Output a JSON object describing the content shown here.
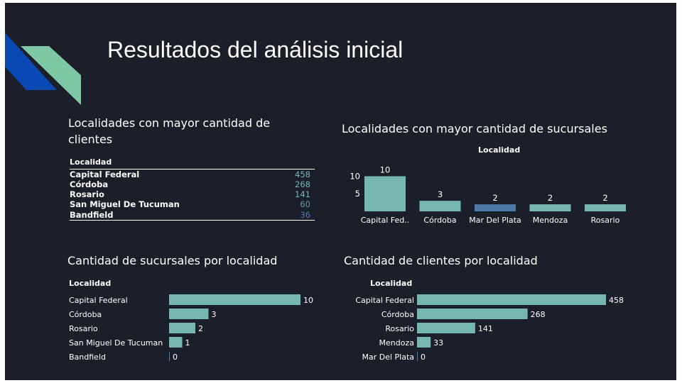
{
  "slide": {
    "title": "Resultados del análisis inicial",
    "colors": {
      "background": "#1b1f2a",
      "bar": "#76b7b2",
      "bar_highlight": "#4e79a7",
      "logo_blue": "#0a48b4",
      "logo_green": "#7fc8a5"
    }
  },
  "chart_data": [
    {
      "type": "table",
      "title": "Localidades con mayor cantidad de clientes",
      "column_header": "Localidad",
      "rows": [
        {
          "name": "Capital Federal",
          "value": "458"
        },
        {
          "name": "Córdoba",
          "value": "268"
        },
        {
          "name": "Rosario",
          "value": "141"
        },
        {
          "name": "San Miguel De Tucuman",
          "value": "60"
        },
        {
          "name": "Bandfield",
          "value": "36"
        }
      ],
      "value_colors": [
        "#76b7b2",
        "#76b7b2",
        "#76b7b2",
        "#6694a0",
        "#4e79a7"
      ]
    },
    {
      "type": "bar",
      "orientation": "vertical",
      "title": "Localidades con mayor cantidad de sucursales",
      "xlabel": "Localidad",
      "categories": [
        "Capital Fed..",
        "Córdoba",
        "Mar Del Plata",
        "Mendoza",
        "Rosario"
      ],
      "values": [
        10,
        3,
        2,
        2,
        2
      ],
      "bar_colors": [
        "#76b7b2",
        "#76b7b2",
        "#4e79a7",
        "#76b7b2",
        "#76b7b2"
      ],
      "yticks": [
        5,
        10
      ],
      "ylim": [
        0,
        10.5
      ]
    },
    {
      "type": "bar",
      "orientation": "horizontal",
      "title": "Cantidad de sucursales por localidad",
      "ylabel": "Localidad",
      "categories": [
        "Capital Federal",
        "Córdoba",
        "Rosario",
        "San Miguel De Tucuman",
        "Bandfield"
      ],
      "values": [
        10,
        3,
        2,
        1,
        0
      ],
      "xlim": [
        0,
        10
      ]
    },
    {
      "type": "bar",
      "orientation": "horizontal",
      "title": "Cantidad de clientes por localidad",
      "ylabel": "Localidad",
      "categories": [
        "Capital Federal",
        "Córdoba",
        "Rosario",
        "Mendoza",
        "Mar Del Plata"
      ],
      "values": [
        458,
        268,
        141,
        33,
        0
      ],
      "xlim": [
        0,
        458
      ]
    }
  ]
}
